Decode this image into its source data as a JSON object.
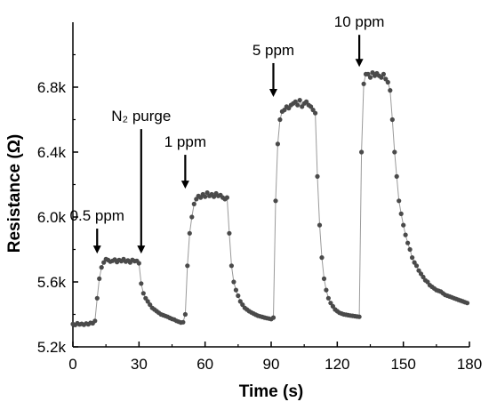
{
  "chart_data": {
    "type": "scatter",
    "xlabel": "Time (s)",
    "ylabel": "Resistance (Ω)",
    "xlim": [
      0,
      180
    ],
    "ylim": [
      5200,
      7200
    ],
    "x_ticks": [
      0,
      30,
      60,
      90,
      120,
      150,
      180
    ],
    "x_tick_labels": [
      "0",
      "30",
      "60",
      "90",
      "120",
      "150",
      "180"
    ],
    "y_ticks": [
      5200,
      5600,
      6000,
      6400,
      6800
    ],
    "y_tick_labels": [
      "5.2k",
      "5.6k",
      "6.0k",
      "6.4k",
      "6.8k"
    ],
    "grid": false,
    "legend": "none",
    "marker_color": "#4a4a4a",
    "line_color": "#9a9a9a",
    "series": [
      {
        "x": [
          0,
          1,
          2,
          3,
          4,
          5,
          6,
          7,
          8,
          9,
          10,
          11,
          12,
          13,
          14,
          15,
          16,
          17,
          18,
          19,
          20,
          21,
          22,
          23,
          24,
          25,
          26,
          27,
          28,
          29,
          30,
          31,
          32,
          33,
          34,
          35,
          36,
          37,
          38,
          39,
          40,
          41,
          42,
          43,
          44,
          45,
          46,
          47,
          48,
          49,
          50,
          51,
          52,
          53,
          54,
          55,
          56,
          57,
          58,
          59,
          60,
          61,
          62,
          63,
          64,
          65,
          66,
          67,
          68,
          69,
          70,
          71,
          72,
          73,
          74,
          75,
          76,
          77,
          78,
          79,
          80,
          81,
          82,
          83,
          84,
          85,
          86,
          87,
          88,
          89,
          90,
          91,
          92,
          93,
          94,
          95,
          96,
          97,
          98,
          99,
          100,
          101,
          102,
          103,
          104,
          105,
          106,
          107,
          108,
          109,
          110,
          111,
          112,
          113,
          114,
          115,
          116,
          117,
          118,
          119,
          120,
          121,
          122,
          123,
          124,
          125,
          126,
          127,
          128,
          129,
          130,
          131,
          132,
          133,
          134,
          135,
          136,
          137,
          138,
          139,
          140,
          141,
          142,
          143,
          144,
          145,
          146,
          147,
          148,
          149,
          150,
          151,
          152,
          153,
          154,
          155,
          156,
          157,
          158,
          159,
          160,
          161,
          162,
          163,
          164,
          165,
          166,
          167,
          168,
          169,
          170,
          171,
          172,
          173,
          174,
          175,
          176,
          177,
          178,
          179
        ],
        "y": [
          5340,
          5335,
          5345,
          5338,
          5342,
          5336,
          5344,
          5339,
          5348,
          5345,
          5360,
          5500,
          5620,
          5690,
          5720,
          5740,
          5735,
          5725,
          5730,
          5738,
          5722,
          5735,
          5728,
          5740,
          5725,
          5732,
          5720,
          5736,
          5728,
          5730,
          5715,
          5590,
          5530,
          5500,
          5480,
          5460,
          5440,
          5430,
          5420,
          5410,
          5400,
          5395,
          5390,
          5385,
          5378,
          5372,
          5368,
          5360,
          5355,
          5350,
          5352,
          5400,
          5700,
          5900,
          6000,
          6080,
          6110,
          6130,
          6120,
          6140,
          6125,
          6150,
          6130,
          6140,
          6125,
          6145,
          6130,
          6135,
          6120,
          6110,
          6120,
          5900,
          5700,
          5600,
          5550,
          5515,
          5480,
          5460,
          5440,
          5430,
          5420,
          5412,
          5405,
          5398,
          5392,
          5388,
          5384,
          5380,
          5377,
          5374,
          5371,
          5380,
          6100,
          6450,
          6600,
          6650,
          6660,
          6680,
          6670,
          6690,
          6700,
          6710,
          6690,
          6720,
          6680,
          6700,
          6710,
          6690,
          6680,
          6660,
          6640,
          6250,
          5950,
          5750,
          5620,
          5550,
          5500,
          5470,
          5450,
          5430,
          5420,
          5410,
          5405,
          5400,
          5398,
          5395,
          5393,
          5391,
          5389,
          5387,
          5385,
          6400,
          6820,
          6880,
          6880,
          6860,
          6890,
          6870,
          6885,
          6870,
          6860,
          6880,
          6850,
          6830,
          6780,
          6600,
          6400,
          6250,
          6100,
          6020,
          5950,
          5890,
          5840,
          5800,
          5750,
          5720,
          5700,
          5670,
          5650,
          5630,
          5610,
          5600,
          5580,
          5570,
          5560,
          5550,
          5545,
          5540,
          5530,
          5520,
          5515,
          5510,
          5505,
          5500,
          5495,
          5490,
          5485,
          5480,
          5475,
          5470
        ]
      }
    ],
    "annotations": [
      {
        "text": "0.5 ppm",
        "x": 11,
        "y_tip": 5775
      },
      {
        "text": "1 ppm",
        "x": 51,
        "y_tip": 6175
      },
      {
        "text": "5 ppm",
        "x": 91,
        "y_tip": 6740
      },
      {
        "text": "10 ppm",
        "x": 130,
        "y_tip": 6925
      },
      {
        "text": "N₂ purge",
        "x": 31,
        "y_tip": 5775
      }
    ]
  }
}
